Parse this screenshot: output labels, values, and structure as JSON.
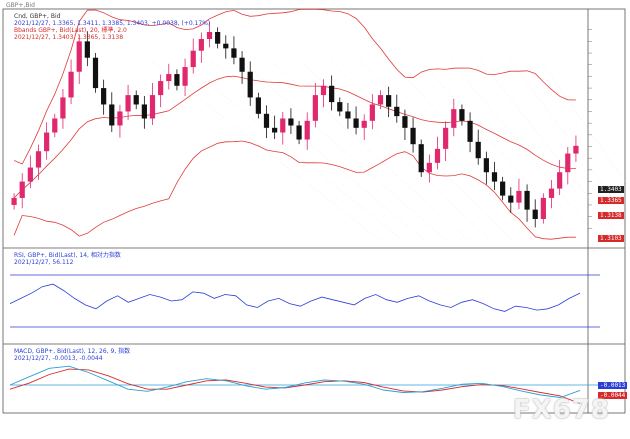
{
  "toolbar_text": "GBP+,Bid",
  "main_panel": {
    "line1": "Cnd, GBP+, Bid",
    "line2": "2021/12/27, 1.3365, 1.3411, 1.3385, 1.3403, +0.0038, (+0.17%)",
    "line3": "Bbands GBP+, Bid(Last), 20, 標準, 2.0",
    "line4": "2021/12/27, 1.3403, 1.3365, 1.3138"
  },
  "rsi_panel": {
    "line1": "RSI, GBP+, Bid(Last), 14, 相対力指数",
    "line2": "2021/12/27, 56.112"
  },
  "macd_panel": {
    "line1": "MACD, GBP+, Bid(Last), 12, 26, 9, 指数",
    "line2": "2021/12/27, -0.0013, -0.0044"
  },
  "price_boxes": [
    {
      "label": "1.3403",
      "color": "#222222"
    },
    {
      "label": "1.3365",
      "color": "#d62b2b"
    },
    {
      "label": "1.3138",
      "color": "#d62b2b"
    },
    {
      "label": "1.3103",
      "color": "#d62b2b"
    }
  ],
  "macd_boxes": [
    {
      "label": "-0.0013",
      "color": "#2b3fd6"
    },
    {
      "label": "-0.0044",
      "color": "#d62b2b"
    }
  ],
  "watermark": "FX678",
  "colors": {
    "bull": "#e0286e",
    "bear": "#111111",
    "band": "#e03a3a",
    "rsi": "#2b3fd6",
    "macd_line": "#2b9fd6",
    "macd_signal": "#d62b2b",
    "hline": "#2b3fd6"
  },
  "chart_data": [
    {
      "type": "candlestick",
      "title": "",
      "series": [
        {
          "name": "GBP+",
          "close": [
            1.318,
            1.325,
            1.331,
            1.338,
            1.346,
            1.352,
            1.361,
            1.372,
            1.385,
            1.378,
            1.365,
            1.358,
            1.349,
            1.355,
            1.362,
            1.358,
            1.352,
            1.362,
            1.368,
            1.371,
            1.366,
            1.374,
            1.381,
            1.386,
            1.389,
            1.384,
            1.382,
            1.378,
            1.372,
            1.361,
            1.354,
            1.348,
            1.346,
            1.352,
            1.349,
            1.343,
            1.351,
            1.362,
            1.366,
            1.359,
            1.355,
            1.352,
            1.348,
            1.351,
            1.358,
            1.362,
            1.357,
            1.353,
            1.348,
            1.341,
            1.329,
            1.333,
            1.339,
            1.348,
            1.356,
            1.351,
            1.342,
            1.335,
            1.329,
            1.325,
            1.319,
            1.316,
            1.321,
            1.313,
            1.309,
            1.318,
            1.322,
            1.329,
            1.337,
            1.3403
          ]
        }
      ]
    },
    {
      "type": "line",
      "title": "",
      "series": [
        {
          "name": "RSI",
          "values": [
            48,
            52,
            56,
            61,
            63,
            58,
            52,
            47,
            44,
            50,
            54,
            49,
            52,
            55,
            53,
            50,
            51,
            57,
            56,
            52,
            55,
            54,
            47,
            45,
            50,
            52,
            48,
            46,
            50,
            53,
            51,
            49,
            47,
            52,
            55,
            51,
            49,
            52,
            54,
            50,
            47,
            45,
            49,
            51,
            48,
            44,
            42,
            46,
            45,
            43,
            44,
            47,
            52,
            56.112
          ]
        }
      ],
      "levels": [
        70,
        30
      ]
    },
    {
      "type": "line",
      "title": "",
      "series": [
        {
          "name": "MACD",
          "values": [
            0.0,
            0.002,
            0.004,
            0.0045,
            0.003,
            0.001,
            -0.001,
            -0.0015,
            -0.0005,
            0.0008,
            0.0015,
            0.001,
            -0.0002,
            -0.001,
            -0.0006,
            0.0005,
            0.0012,
            0.0009,
            0.0002,
            -0.0012,
            -0.0018,
            -0.0016,
            -0.0008,
            0.0002,
            0.0004,
            -0.0003,
            -0.0014,
            -0.0024,
            -0.003,
            -0.0013
          ]
        },
        {
          "name": "Signal",
          "values": [
            -0.001,
            0.0005,
            0.0025,
            0.0038,
            0.0036,
            0.0022,
            0.0003,
            -0.001,
            -0.001,
            0.0,
            0.001,
            0.0012,
            0.0004,
            -0.0005,
            -0.0007,
            0.0,
            0.0008,
            0.001,
            0.0006,
            -0.0005,
            -0.0014,
            -0.0017,
            -0.0012,
            -0.0004,
            0.0001,
            -0.0001,
            -0.0009,
            -0.0018,
            -0.0026,
            -0.0044
          ]
        }
      ],
      "levels": [
        0
      ]
    }
  ]
}
